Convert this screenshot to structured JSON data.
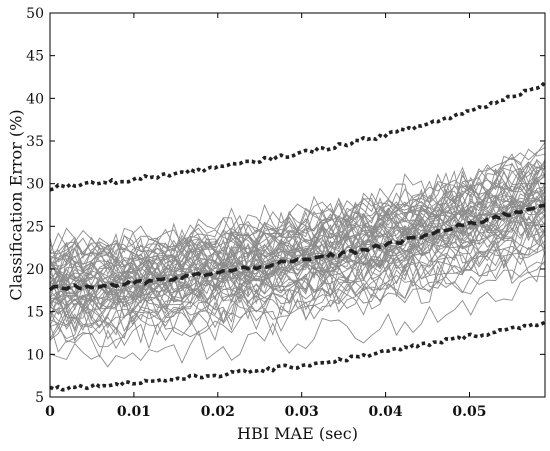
{
  "chart_data": {
    "type": "line",
    "xlabel": "HBI MAE (sec)",
    "ylabel": "Classification Error (%)",
    "xlim": [
      0,
      0.059
    ],
    "ylim": [
      5,
      50
    ],
    "xticks": [
      "0",
      "0.01",
      "0.02",
      "0.03",
      "0.04",
      "0.05"
    ],
    "yticks": [
      "5",
      "10",
      "15",
      "20",
      "25",
      "30",
      "35",
      "40",
      "45",
      "50"
    ],
    "grid": false,
    "legend": "none",
    "x": [
      0,
      0.005,
      0.01,
      0.015,
      0.02,
      0.025,
      0.03,
      0.035,
      0.04,
      0.045,
      0.05,
      0.055,
      0.059
    ],
    "series": [
      {
        "style": "dashed",
        "values": [
          17.8,
          17.9,
          18.3,
          18.9,
          19.6,
          20.3,
          21.0,
          21.8,
          22.8,
          24.0,
          25.3,
          26.5,
          27.6
        ]
      },
      {
        "style": "dotted",
        "values": [
          29.5,
          30.0,
          30.5,
          31.2,
          31.9,
          32.7,
          33.6,
          34.6,
          35.7,
          37.0,
          38.5,
          40.2,
          41.8
        ]
      },
      {
        "style": "dotted",
        "values": [
          6.0,
          6.3,
          6.7,
          7.1,
          7.6,
          8.1,
          8.7,
          9.4,
          10.3,
          11.2,
          12.1,
          13.0,
          13.8
        ]
      }
    ],
    "colors": {
      "individual_runs": "#8c8c8c",
      "summary_lines": "#222222",
      "axes": "#000000"
    }
  }
}
